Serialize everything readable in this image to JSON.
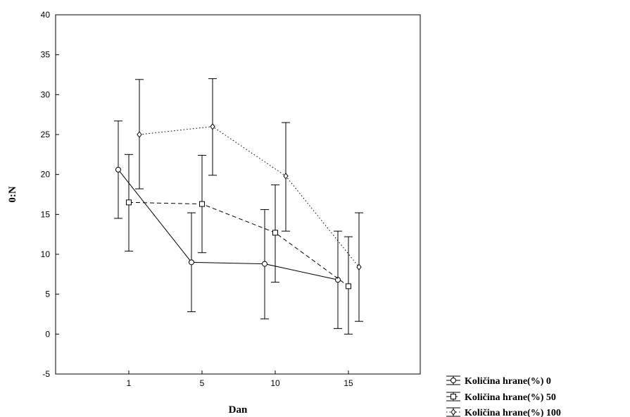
{
  "chart_data": {
    "type": "line",
    "title": "",
    "xlabel": "Dan",
    "ylabel": "0:N",
    "categories": [
      "1",
      "5",
      "10",
      "15"
    ],
    "ylim": [
      -5,
      40
    ],
    "yticks": [
      "-5",
      "0",
      "5",
      "10",
      "15",
      "20",
      "25",
      "30",
      "35",
      "40"
    ],
    "grid": false,
    "error_bars": true,
    "legend_position": "bottom-right, outside plot",
    "series": [
      {
        "name": "Količina hrane(%) 0",
        "marker": "circle",
        "line_style": "solid",
        "values": [
          20.6,
          9.0,
          8.8,
          6.8
        ],
        "err_low": [
          14.5,
          2.8,
          1.9,
          0.7
        ],
        "err_high": [
          26.7,
          15.2,
          15.6,
          12.9
        ]
      },
      {
        "name": "Količina hrane(%) 50",
        "marker": "square",
        "line_style": "dashed",
        "values": [
          16.5,
          16.3,
          12.7,
          6.0
        ],
        "err_low": [
          10.4,
          10.2,
          6.5,
          0.0
        ],
        "err_high": [
          22.5,
          22.4,
          18.7,
          12.2
        ]
      },
      {
        "name": "Količina hrane(%) 100",
        "marker": "diamond",
        "line_style": "dotted",
        "values": [
          25.0,
          26.0,
          19.8,
          8.4
        ],
        "err_low": [
          18.2,
          19.9,
          12.9,
          1.6
        ],
        "err_high": [
          31.9,
          32.0,
          26.5,
          15.2
        ]
      }
    ]
  }
}
